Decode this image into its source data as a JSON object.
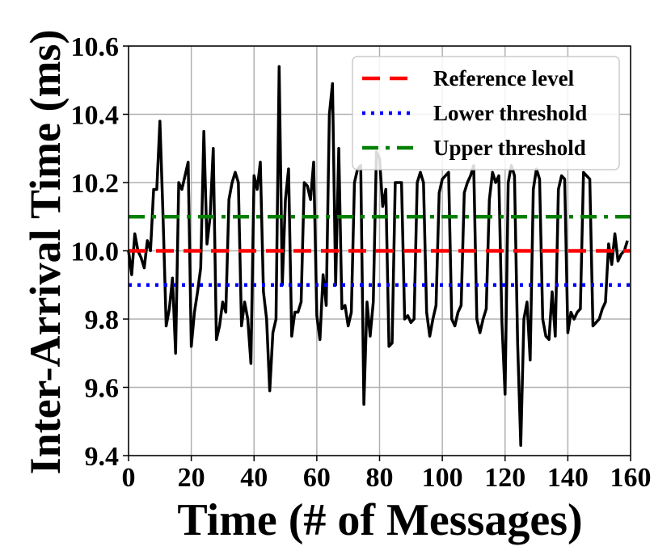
{
  "chart_data": {
    "type": "line",
    "title": "",
    "xlabel": "Time (# of Messages)",
    "ylabel": "Inter-Arrival Time (ms)",
    "xlim": [
      0,
      160
    ],
    "ylim": [
      9.4,
      10.6
    ],
    "xticks": [
      0,
      20,
      40,
      60,
      80,
      100,
      120,
      140,
      160
    ],
    "yticks": [
      9.4,
      9.6,
      9.8,
      10.0,
      10.2,
      10.4,
      10.6
    ],
    "ytick_labels": [
      "9.4",
      "9.6",
      "9.8",
      "10.0",
      "10.2",
      "10.4",
      "10.6"
    ],
    "xtick_labels": [
      "0",
      "20",
      "40",
      "60",
      "80",
      "100",
      "120",
      "140",
      "160"
    ],
    "grid": true,
    "legend_position": "top-right",
    "series": [
      {
        "name": "Inter-arrival time",
        "color": "#000000",
        "style": "solid",
        "in_legend": false,
        "x": [
          0,
          1,
          2,
          3,
          4,
          5,
          6,
          7,
          8,
          9,
          10,
          11,
          12,
          13,
          14,
          15,
          16,
          17,
          18,
          19,
          20,
          21,
          22,
          23,
          24,
          25,
          26,
          27,
          28,
          29,
          30,
          31,
          32,
          33,
          34,
          35,
          36,
          37,
          38,
          39,
          40,
          41,
          42,
          43,
          44,
          45,
          46,
          47,
          48,
          49,
          50,
          51,
          52,
          53,
          54,
          55,
          56,
          57,
          58,
          59,
          60,
          61,
          62,
          63,
          64,
          65,
          66,
          67,
          68,
          69,
          70,
          71,
          72,
          73,
          74,
          75,
          76,
          77,
          78,
          79,
          80,
          81,
          82,
          83,
          84,
          85,
          86,
          87,
          88,
          89,
          90,
          91,
          92,
          93,
          94,
          95,
          96,
          97,
          98,
          99,
          100,
          101,
          102,
          103,
          104,
          105,
          106,
          107,
          108,
          109,
          110,
          111,
          112,
          113,
          114,
          115,
          116,
          117,
          118,
          119,
          120,
          121,
          122,
          123,
          124,
          125,
          126,
          127,
          128,
          129,
          130,
          131,
          132,
          133,
          134,
          135,
          136,
          137,
          138,
          139,
          140,
          141,
          142,
          143,
          144,
          145,
          146,
          147,
          148,
          149,
          150,
          151,
          152,
          153,
          154,
          155,
          156,
          157,
          158,
          159
        ],
        "values": [
          10.0,
          9.93,
          10.05,
          10.0,
          9.98,
          9.95,
          10.03,
          10.0,
          10.18,
          10.18,
          10.38,
          10.1,
          9.78,
          9.83,
          9.92,
          9.7,
          10.2,
          10.18,
          10.22,
          10.26,
          9.72,
          9.82,
          9.88,
          9.95,
          10.35,
          10.02,
          10.1,
          10.3,
          9.74,
          9.78,
          9.85,
          9.82,
          10.15,
          10.2,
          10.23,
          10.2,
          9.78,
          9.85,
          9.8,
          9.67,
          10.22,
          10.18,
          10.26,
          9.88,
          9.8,
          9.59,
          9.76,
          9.8,
          10.54,
          9.9,
          10.15,
          10.24,
          9.75,
          9.82,
          9.82,
          9.85,
          10.2,
          10.19,
          10.15,
          10.26,
          9.81,
          9.74,
          9.93,
          9.84,
          10.4,
          10.49,
          9.9,
          10.3,
          9.83,
          9.84,
          9.78,
          9.82,
          10.2,
          10.24,
          10.25,
          9.55,
          9.85,
          9.75,
          9.85,
          10.29,
          10.27,
          10.13,
          10.18,
          9.72,
          9.73,
          10.2,
          10.2,
          10.2,
          9.8,
          9.81,
          9.79,
          9.8,
          10.2,
          10.23,
          10.2,
          9.82,
          9.75,
          9.8,
          9.84,
          10.17,
          10.21,
          10.22,
          10.23,
          9.8,
          9.78,
          9.82,
          9.84,
          10.17,
          10.2,
          10.22,
          10.25,
          9.8,
          9.76,
          9.8,
          9.83,
          10.15,
          10.23,
          10.2,
          10.22,
          9.79,
          9.58,
          10.2,
          10.25,
          10.22,
          9.73,
          9.43,
          9.8,
          9.85,
          9.68,
          10.18,
          10.24,
          10.21,
          9.8,
          9.75,
          9.74,
          9.88,
          9.75,
          10.18,
          10.22,
          10.21,
          9.76,
          9.82,
          9.8,
          9.82,
          9.83,
          10.23,
          10.22,
          10.21,
          9.78,
          9.79,
          9.8,
          9.83,
          9.85,
          10.02,
          9.96,
          10.05,
          9.97,
          9.99,
          10.0,
          10.03
        ]
      },
      {
        "name": "Reference level",
        "color": "#ff0000",
        "style": "dashed",
        "in_legend": true,
        "x": [
          0,
          160
        ],
        "values": [
          10.0,
          10.0
        ]
      },
      {
        "name": "Lower threshold",
        "color": "#0000ff",
        "style": "dotted",
        "in_legend": true,
        "x": [
          0,
          160
        ],
        "values": [
          9.9,
          9.9
        ]
      },
      {
        "name": "Upper threshold",
        "color": "#008000",
        "style": "dashdot",
        "in_legend": true,
        "x": [
          0,
          160
        ],
        "values": [
          10.1,
          10.1
        ]
      }
    ]
  }
}
